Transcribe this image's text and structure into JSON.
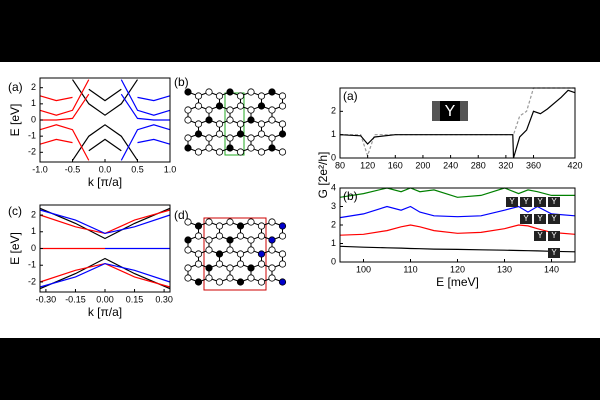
{
  "chart_data": [
    {
      "type": "line",
      "label": "(a)",
      "xlabel": "k [π/a]",
      "ylabel": "E [eV]",
      "xlim": [
        -1.0,
        1.0
      ],
      "ylim": [
        -2.6,
        2.6
      ],
      "xticks": [
        {
          "value": -1.0,
          "label": "-1.0"
        },
        {
          "value": -0.5,
          "label": "-0.5"
        },
        {
          "value": 0.0,
          "label": "0.0"
        },
        {
          "value": 0.5,
          "label": "0.5"
        },
        {
          "value": 1.0,
          "label": "1.0"
        }
      ],
      "yticks": [
        -2,
        -1,
        0,
        1,
        2
      ],
      "x": [
        -1.0,
        -0.75,
        -0.5,
        -0.25,
        0.0,
        0.25,
        0.5,
        0.75,
        1.0
      ],
      "series": [
        {
          "color": "#000000",
          "values": [
            null,
            null,
            2.5,
            1.0,
            0.3,
            1.0,
            2.5,
            null,
            null
          ]
        },
        {
          "color": "#000000",
          "values": [
            null,
            null,
            -2.5,
            -1.0,
            -0.3,
            -1.0,
            -2.5,
            null,
            null
          ]
        },
        {
          "color": "#000000",
          "values": [
            null,
            null,
            null,
            1.9,
            1.2,
            1.9,
            null,
            null,
            null
          ]
        },
        {
          "color": "#000000",
          "values": [
            null,
            null,
            null,
            -1.9,
            -1.2,
            -1.9,
            null,
            null,
            null
          ]
        },
        {
          "color": "#ff0000",
          "values": [
            0,
            0,
            0.1,
            1.6,
            null,
            null,
            null,
            null,
            null
          ]
        },
        {
          "color": "#ff0000",
          "values": [
            0.6,
            0.3,
            0.6,
            2.5,
            null,
            null,
            null,
            null,
            null
          ]
        },
        {
          "color": "#ff0000",
          "values": [
            1.5,
            1.2,
            1.4,
            null,
            null,
            null,
            null,
            null,
            null
          ]
        },
        {
          "color": "#ff0000",
          "values": [
            -1.5,
            -1.2,
            -1.4,
            null,
            null,
            null,
            null,
            null,
            null
          ]
        },
        {
          "color": "#ff0000",
          "values": [
            -0.6,
            -0.3,
            -0.6,
            -2.5,
            null,
            null,
            null,
            null,
            null
          ]
        },
        {
          "color": "#0000ff",
          "values": [
            null,
            null,
            null,
            null,
            null,
            1.6,
            0.1,
            0,
            0
          ]
        },
        {
          "color": "#0000ff",
          "values": [
            null,
            null,
            null,
            null,
            null,
            2.5,
            0.6,
            0.3,
            0.6
          ]
        },
        {
          "color": "#0000ff",
          "values": [
            null,
            null,
            null,
            null,
            null,
            null,
            1.4,
            1.2,
            1.5
          ]
        },
        {
          "color": "#0000ff",
          "values": [
            null,
            null,
            null,
            null,
            null,
            null,
            -1.4,
            -1.2,
            -1.5
          ]
        },
        {
          "color": "#0000ff",
          "values": [
            null,
            null,
            null,
            null,
            null,
            -2.5,
            -0.6,
            -0.3,
            -0.6
          ]
        }
      ]
    },
    {
      "type": "line",
      "label": "(c)",
      "xlabel": "k [π/a]",
      "ylabel": "E [eV]",
      "xlim": [
        -0.33,
        0.33
      ],
      "ylim": [
        -2.6,
        2.6
      ],
      "xticks": [
        {
          "value": -0.3,
          "label": "-0.30"
        },
        {
          "value": -0.15,
          "label": "-0.15"
        },
        {
          "value": 0.0,
          "label": "0.00"
        },
        {
          "value": 0.15,
          "label": "0.15"
        },
        {
          "value": 0.3,
          "label": "0.30"
        }
      ],
      "yticks": [
        -2,
        -1,
        0,
        1,
        2
      ],
      "x": [
        -0.33,
        -0.15,
        0.0,
        0.15,
        0.33
      ],
      "series": [
        {
          "color": "#ff0000",
          "values": [
            0,
            0,
            0,
            null,
            null
          ]
        },
        {
          "color": "#0000ff",
          "values": [
            null,
            null,
            0,
            0,
            0
          ]
        },
        {
          "color": "#000000",
          "values": [
            2.4,
            1.5,
            0.6,
            1.5,
            2.4
          ]
        },
        {
          "color": "#000000",
          "values": [
            -2.4,
            -1.5,
            -0.6,
            -1.5,
            -2.4
          ]
        },
        {
          "color": "#ff0000",
          "values": [
            2.0,
            1.3,
            0.9,
            1.7,
            2.3
          ]
        },
        {
          "color": "#0000ff",
          "values": [
            2.3,
            1.7,
            0.9,
            1.3,
            2.0
          ]
        },
        {
          "color": "#ff0000",
          "values": [
            -2.0,
            -1.3,
            -0.9,
            -1.7,
            -2.3
          ]
        },
        {
          "color": "#0000ff",
          "values": [
            -2.3,
            -1.7,
            -0.9,
            -1.3,
            -2.0
          ]
        }
      ]
    },
    {
      "type": "line",
      "label": "(a)",
      "annotations": [
        "Y"
      ],
      "xlim": [
        80,
        420
      ],
      "ylim": [
        0,
        3
      ],
      "xticks": [
        80,
        120,
        160,
        200,
        240,
        280,
        320,
        360,
        420
      ],
      "yticks": [
        0,
        1,
        2
      ],
      "x": [
        80,
        110,
        120,
        130,
        160,
        320,
        330,
        331,
        340,
        350,
        360,
        370,
        380,
        400,
        410,
        420
      ],
      "series": [
        {
          "color": "#999999",
          "dash": true,
          "values": [
            1,
            1,
            0.1,
            1,
            1,
            1,
            1,
            1,
            1.8,
            2,
            3,
            3,
            3,
            3,
            3,
            3
          ]
        },
        {
          "color": "#000000",
          "values": [
            1,
            0.95,
            0.6,
            0.9,
            1,
            1,
            1,
            0,
            0.9,
            1.2,
            2.0,
            1.9,
            2.1,
            2.6,
            2.9,
            2.8
          ]
        }
      ]
    },
    {
      "type": "line",
      "label": "(b)",
      "xlabel": "E [meV]",
      "ylabel": "G [2e²/h]",
      "annotations": [
        "Y",
        "Y",
        "Y",
        "Y",
        "Y",
        "Y",
        "Y",
        "Y",
        "Y",
        "Y"
      ],
      "xlim": [
        95,
        145
      ],
      "ylim": [
        0,
        4
      ],
      "xticks": [
        100,
        110,
        120,
        130,
        140
      ],
      "yticks": [
        0,
        1,
        2,
        3,
        4
      ],
      "x": [
        95,
        100,
        105,
        108,
        110,
        112,
        115,
        120,
        125,
        130,
        133,
        135,
        137,
        140,
        145
      ],
      "series": [
        {
          "color": "#000000",
          "values": [
            0.85,
            0.8,
            0.77,
            0.75,
            0.73,
            0.72,
            0.7,
            0.68,
            0.66,
            0.64,
            0.62,
            0.61,
            0.6,
            0.58,
            0.55
          ]
        },
        {
          "color": "#ff0000",
          "values": [
            1.45,
            1.5,
            1.7,
            1.9,
            2.0,
            1.9,
            1.7,
            1.55,
            1.6,
            1.8,
            2.0,
            1.95,
            1.8,
            1.6,
            1.5
          ]
        },
        {
          "color": "#0000ff",
          "values": [
            2.4,
            2.6,
            3.0,
            2.8,
            3.0,
            2.7,
            2.5,
            2.45,
            2.5,
            2.8,
            3.0,
            2.7,
            3.0,
            2.6,
            2.5
          ]
        },
        {
          "color": "#008000",
          "values": [
            3.5,
            3.7,
            4.0,
            3.8,
            4.0,
            3.8,
            3.9,
            3.5,
            3.6,
            4.0,
            3.7,
            3.9,
            3.8,
            3.6,
            3.6
          ]
        }
      ]
    }
  ],
  "diagrams": [
    {
      "label": "(b)"
    },
    {
      "label": "(d)"
    }
  ]
}
